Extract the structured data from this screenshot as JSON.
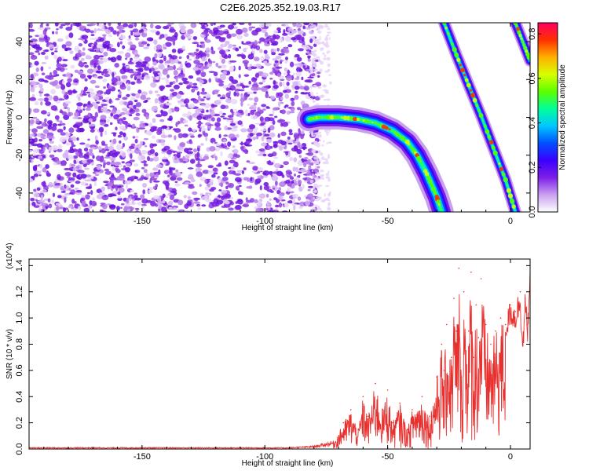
{
  "title": "C2E6.2025.352.19.03.R17",
  "chart_data": [
    {
      "type": "heatmap",
      "xlabel": "Height of straight line (km)",
      "ylabel": "Frequency (Hz)",
      "xlim": [
        -196,
        8
      ],
      "ylim": [
        -50,
        50
      ],
      "xticks": [
        -150,
        -100,
        -50,
        0
      ],
      "yticks": [
        -40,
        -20,
        0,
        20,
        40
      ],
      "colorbar": {
        "label": "Normalized spectral amplitude",
        "range": [
          0.0,
          0.85
        ],
        "ticks": [
          "0.0",
          "0.2",
          "0.4",
          "0.6",
          "0.8"
        ],
        "tick_values": [
          0.0,
          0.2,
          0.4,
          0.6,
          0.8
        ],
        "colors": [
          "#ffffff",
          "#c9a0f0",
          "#7d1ee8",
          "#3a00ff",
          "#0050ff",
          "#00c8ff",
          "#00ff9a",
          "#5cff00",
          "#d8ff00",
          "#ffb000",
          "#ff3000",
          "#ff0060"
        ]
      },
      "noise_region": {
        "x_range": [
          -196,
          -78
        ],
        "y_range": [
          -50,
          50
        ],
        "amplitude": 0.1
      },
      "traces": [
        {
          "name": "",
          "x": [
            -82,
            -78,
            -70,
            -62,
            -55,
            -48,
            -42,
            -38,
            -34,
            -30,
            -28
          ],
          "y": [
            -1,
            0,
            0,
            -1,
            -3,
            -7,
            -13,
            -20,
            -30,
            -42,
            -50
          ],
          "amplitude": 0.45,
          "width_hz": 4
        },
        {
          "name": "",
          "x": [
            -27,
            -22,
            -17,
            -12,
            -7,
            -2,
            2
          ],
          "y": [
            50,
            33,
            17,
            1,
            -16,
            -33,
            -50
          ],
          "amplitude": 0.45,
          "width_hz": 2
        },
        {
          "name": "",
          "x": [
            2,
            5,
            8
          ],
          "y": [
            50,
            40,
            30
          ],
          "amplitude": 0.3,
          "width_hz": 2
        }
      ]
    },
    {
      "type": "line",
      "xlabel": "Height of straight line (km)",
      "ylabel": "SNR (10 * v/v)",
      "y_multiplier": "(x10^4)",
      "xlim": [
        -196,
        8
      ],
      "ylim": [
        0.0,
        1.45
      ],
      "xticks": [
        -150,
        -100,
        -50,
        0
      ],
      "yticks": [
        "0.0",
        "0.2",
        "0.4",
        "0.6",
        "0.8",
        "1.0",
        "1.2",
        "1.4"
      ],
      "ytick_values": [
        0.0,
        0.2,
        0.4,
        0.6,
        0.8,
        1.0,
        1.2,
        1.4
      ],
      "color": "#e8312f",
      "series": [
        {
          "name": "",
          "x": [
            -196,
            -90,
            -80,
            -72,
            -68,
            -65,
            -62,
            -60,
            -58,
            -55,
            -52,
            -50,
            -48,
            -45,
            -42,
            -40,
            -36,
            -33,
            -30,
            -28,
            -27,
            -26,
            -24,
            -23,
            -22,
            -21,
            -20,
            -19,
            -17,
            -16,
            -15,
            -14,
            -13,
            -12,
            -10,
            -8,
            -6,
            -4,
            -2,
            0,
            2,
            4,
            5,
            6,
            7,
            8
          ],
          "y": [
            0.01,
            0.01,
            0.02,
            0.05,
            0.2,
            0.3,
            0.15,
            0.4,
            0.25,
            0.5,
            0.3,
            0.45,
            0.2,
            0.35,
            0.15,
            0.3,
            0.4,
            0.25,
            0.55,
            0.8,
            0.6,
            0.95,
            0.7,
            1.15,
            0.9,
            1.38,
            0.55,
            1.2,
            0.9,
            1.35,
            0.7,
            1.1,
            0.85,
            1.3,
            0.95,
            0.8,
            0.9,
            1.0,
            0.95,
            1.1,
            1.05,
            1.2,
            0.8,
            1.15,
            0.95,
            1.45
          ]
        }
      ]
    }
  ]
}
